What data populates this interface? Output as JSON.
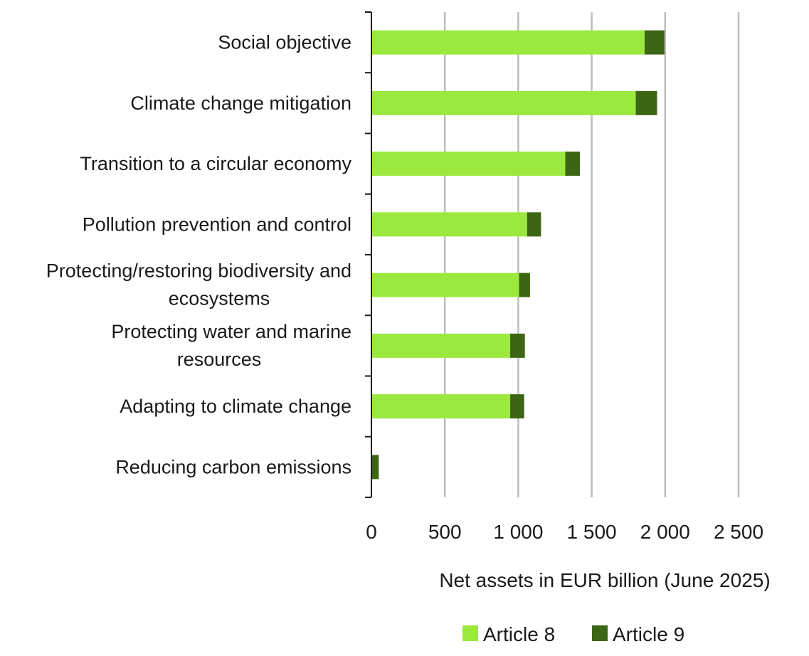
{
  "chart_data": {
    "type": "bar",
    "orientation": "horizontal",
    "stacked": true,
    "categories": [
      "Social objective",
      "Climate change mitigation",
      "Transition to a circular economy",
      "Pollution prevention and control",
      "Protecting/restoring biodiversity and ecosystems",
      "Protecting water and marine resources",
      "Adapting to climate change",
      "Reducing carbon emissions"
    ],
    "series": [
      {
        "name": "Article 8",
        "color": "#9be93f",
        "values": [
          1860,
          1800,
          1320,
          1060,
          1005,
          945,
          945,
          0
        ]
      },
      {
        "name": "Article 9",
        "color": "#3d6614",
        "values": [
          135,
          145,
          100,
          95,
          75,
          100,
          95,
          50
        ]
      }
    ],
    "xlabel": "Net assets in EUR billion (June 2025)",
    "ylabel": "",
    "xlim": [
      0,
      2500
    ],
    "xticks": [
      0,
      500,
      1000,
      1500,
      2000,
      2500
    ],
    "xtick_labels": [
      "0",
      "500",
      "1 000",
      "1 500",
      "2 000",
      "2 500"
    ],
    "grid": true,
    "legend_position": "bottom"
  }
}
